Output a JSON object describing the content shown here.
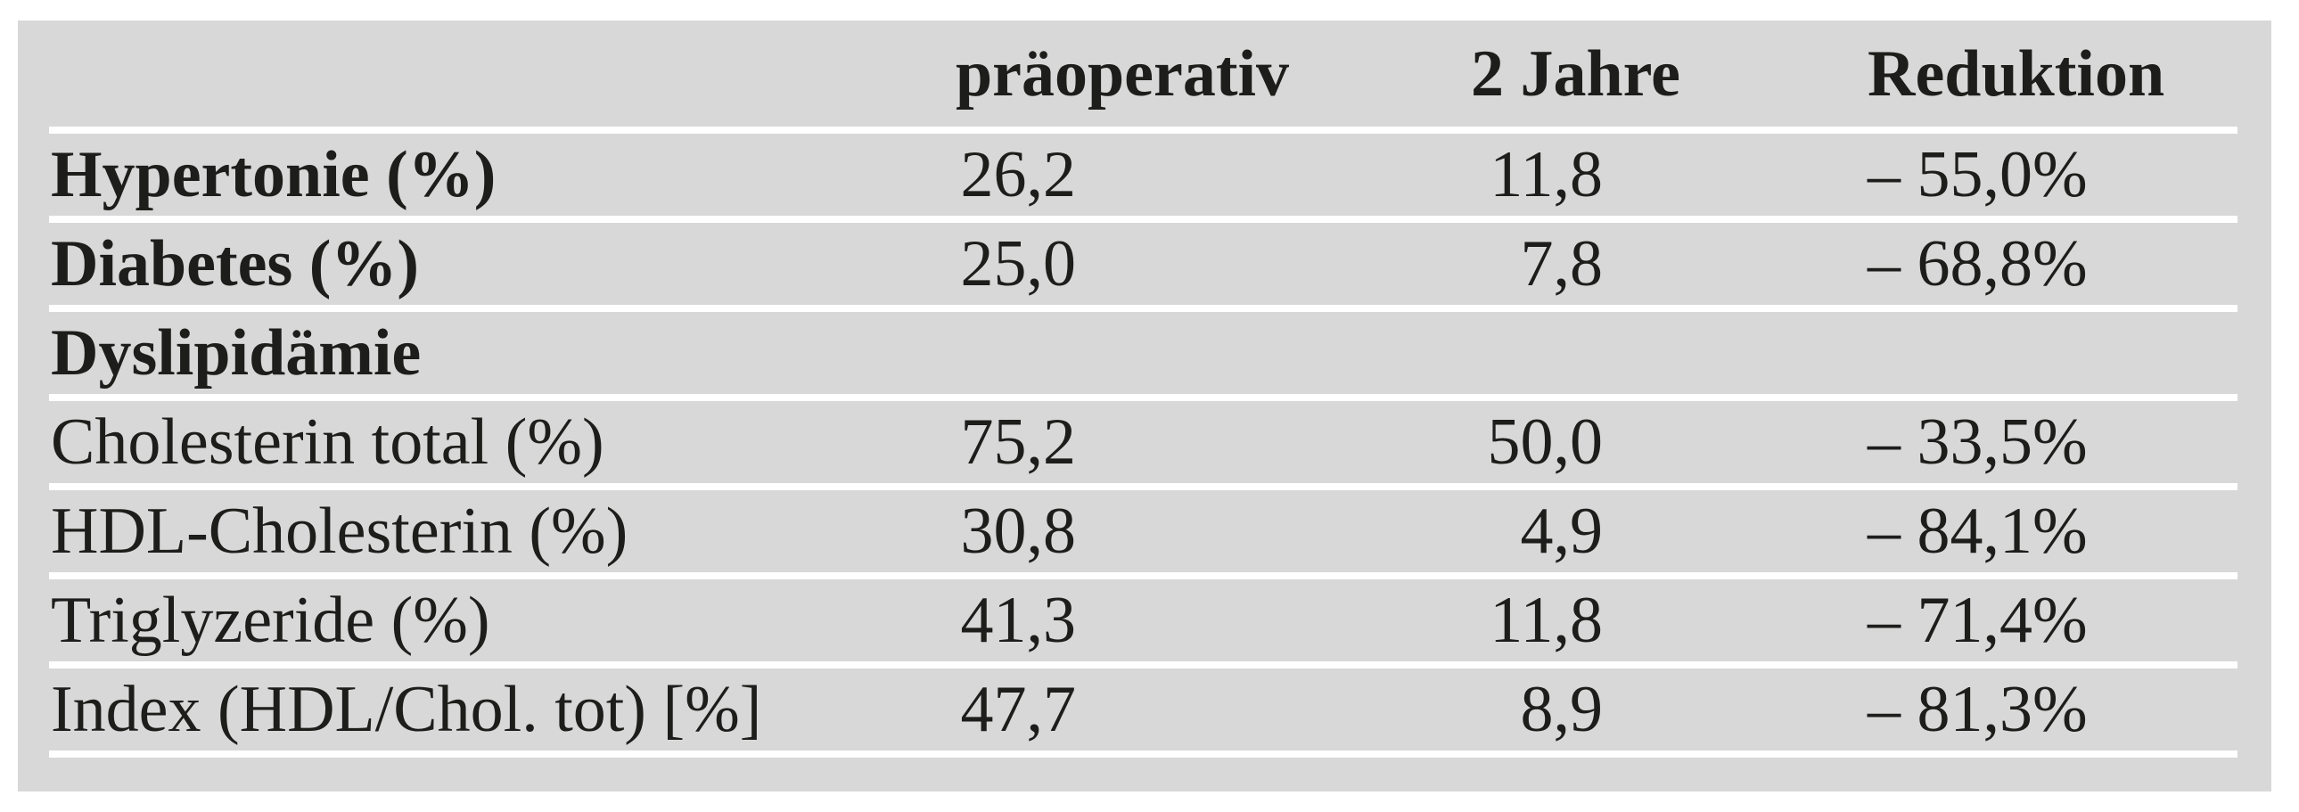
{
  "table": {
    "header": {
      "label": "",
      "preop": "präoperativ",
      "two_years": "2 Jahre",
      "reduction": "Reduktion"
    },
    "rows": [
      {
        "label": "Hypertonie (%)",
        "preop": "26,2",
        "two_years": "11,8",
        "reduction": "– 55,0%"
      },
      {
        "label": "Diabetes (%)",
        "preop": "25,0",
        "two_years": "7,8",
        "reduction": "– 68,8%"
      },
      {
        "label": "Dyslipidämie",
        "preop": "",
        "two_years": "",
        "reduction": ""
      },
      {
        "label": "Cholesterin total (%)",
        "preop": "75,2",
        "two_years": "50,0",
        "reduction": "– 33,5%"
      },
      {
        "label": "HDL-Cholesterin (%)",
        "preop": "30,8",
        "two_years": "4,9",
        "reduction": "– 84,1%"
      },
      {
        "label": "Triglyzeride (%)",
        "preop": "41,3",
        "two_years": "11,8",
        "reduction": "– 71,4%"
      },
      {
        "label": "Index (HDL/Chol. tot) [%]",
        "preop": "47,7",
        "two_years": "8,9",
        "reduction": "– 81,3%"
      }
    ],
    "colors": {
      "panel_background": "#d8d8d8",
      "text": "#1d1d1b",
      "separator": "#ffffff",
      "page_background": "#ffffff"
    }
  }
}
